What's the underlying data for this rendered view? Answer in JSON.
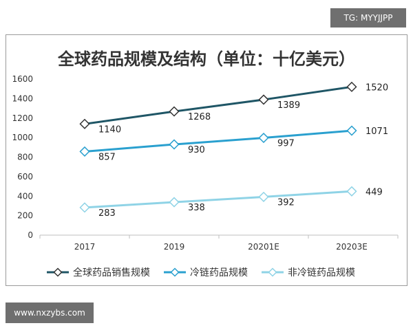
{
  "watermarks": {
    "top": "TG: MYYJJPP",
    "bottom": "www.nxzybs.com"
  },
  "chart_data": {
    "type": "line",
    "title": "全球药品规模及结构（单位：十亿美元）",
    "categories": [
      "2017",
      "2019",
      "20201E",
      "20203E"
    ],
    "ylim": [
      0,
      1600
    ],
    "yticks": [
      0,
      200,
      400,
      600,
      800,
      1000,
      1200,
      1400,
      1600
    ],
    "grid": false,
    "legend_position": "bottom",
    "series": [
      {
        "name": "全球药品销售规模",
        "values": [
          1140,
          1268,
          1389,
          1520
        ],
        "color": "#1f5666"
      },
      {
        "name": "冷链药品规模",
        "values": [
          857,
          930,
          997,
          1071
        ],
        "color": "#2aa0cf"
      },
      {
        "name": "非冷链药品规模",
        "values": [
          283,
          338,
          392,
          449
        ],
        "color": "#8fd3e6"
      }
    ]
  }
}
